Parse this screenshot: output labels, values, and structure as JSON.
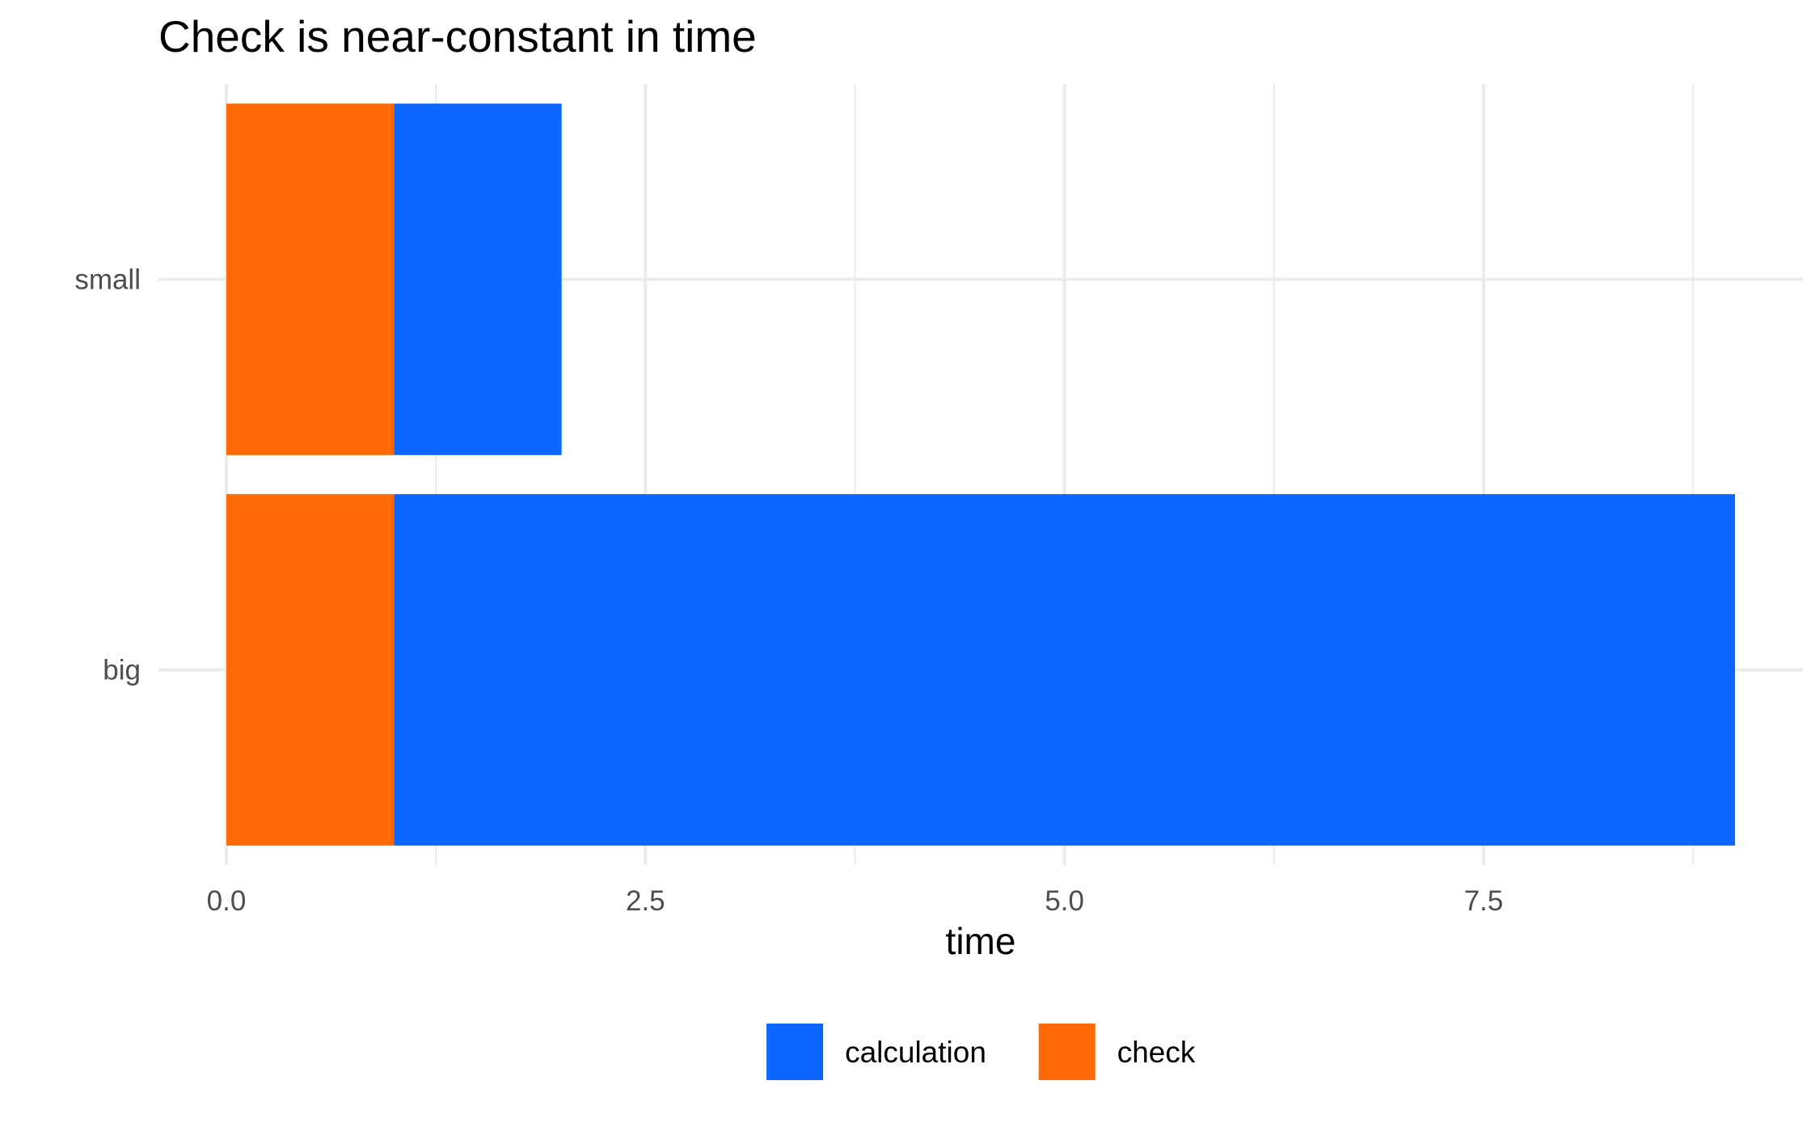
{
  "chart_data": {
    "type": "bar",
    "orientation": "horizontal",
    "stacked": true,
    "title": "Check is near-constant in time",
    "xlabel": "time",
    "ylabel": "",
    "categories": [
      "big",
      "small"
    ],
    "series": [
      {
        "name": "check",
        "values": [
          1,
          1
        ],
        "color": "#FF6A08"
      },
      {
        "name": "calculation",
        "values": [
          8,
          1
        ],
        "color": "#0D66FF"
      }
    ],
    "stack_order": [
      "check",
      "calculation"
    ],
    "xlim": [
      0,
      9
    ],
    "xticks": [
      {
        "value": 0,
        "label": "0.0"
      },
      {
        "value": 2.5,
        "label": "2.5"
      },
      {
        "value": 5,
        "label": "5.0"
      },
      {
        "value": 7.5,
        "label": "7.5"
      }
    ],
    "grid": true,
    "legend": {
      "position": "bottom",
      "entries": [
        {
          "name": "calculation",
          "color": "#0D66FF"
        },
        {
          "name": "check",
          "color": "#FF6A08"
        }
      ]
    },
    "colors": {
      "grid": "#EBEBEB",
      "text": "#4D4D4D",
      "title": "#000000",
      "background": "#FFFFFF"
    }
  }
}
